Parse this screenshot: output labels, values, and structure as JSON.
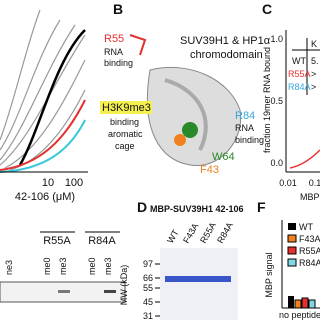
{
  "panel_a": {
    "x_ticks": [
      "10",
      "100"
    ],
    "x_label": "42-106 (μM)"
  },
  "panel_b": {
    "letter": "B",
    "title": [
      "SUV39H1 & HP1α",
      "chromodomain"
    ],
    "r55": [
      "R55",
      "RNA",
      "binding"
    ],
    "cage": [
      "H3K9me3",
      "binding",
      "aromatic",
      "cage"
    ],
    "r84": [
      "R84",
      "RNA",
      "binding"
    ],
    "residues": [
      "W64",
      "F43"
    ]
  },
  "panel_c": {
    "letter": "C",
    "y_label": "fraction 19mer RNA bound",
    "y_ticks": [
      "1.0",
      "0.5",
      "0.0"
    ],
    "x_ticks": [
      "0.01",
      "0.1"
    ],
    "x_label": "MBP-",
    "legend": [
      "WT",
      "R55A",
      "R84A"
    ],
    "col_header": "K",
    "col_values": [
      "5.",
      ">",
      ">"
    ]
  },
  "panel_d": {
    "letter": "D",
    "title": "MBP-SUV39H1 42-106",
    "lanes": [
      "WT",
      "F43A",
      "R55A",
      "R84A"
    ],
    "y_label": "MW (kDa)",
    "mw_ticks": [
      "97",
      "66",
      "55",
      "45",
      "31"
    ]
  },
  "panel_e": {
    "groups": [
      "R55A",
      "R84A"
    ],
    "lanes": [
      "ne3",
      "me0",
      "me3",
      "me0",
      "me3"
    ]
  },
  "panel_f": {
    "letter": "F",
    "y_label": "MBP signal",
    "legend": [
      "WT",
      "F43A",
      "R55A",
      "R84A"
    ],
    "x_label": "no peptide"
  }
}
